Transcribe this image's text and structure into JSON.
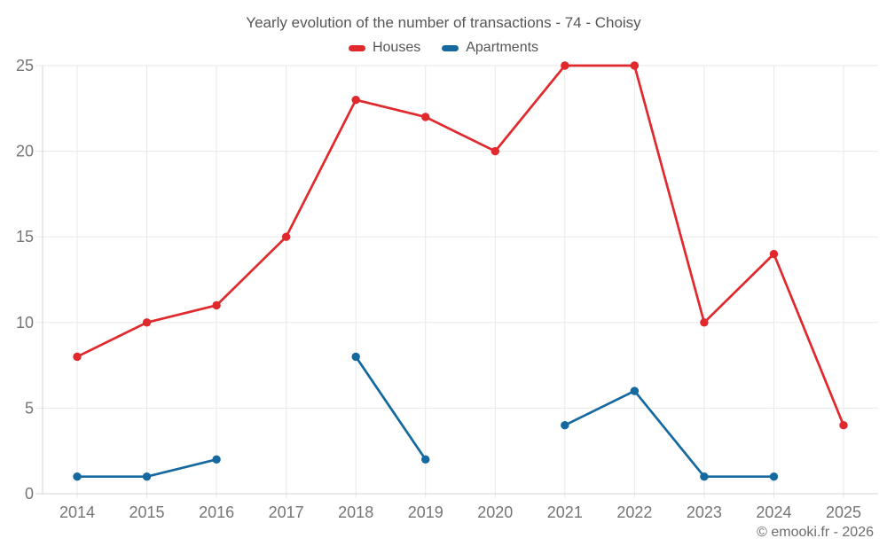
{
  "chart_data": {
    "type": "line",
    "title": "Yearly evolution of the number of transactions - 74 - Choisy",
    "x": [
      "2014",
      "2015",
      "2016",
      "2017",
      "2018",
      "2019",
      "2020",
      "2021",
      "2022",
      "2023",
      "2024",
      "2025"
    ],
    "series": [
      {
        "name": "Houses",
        "color": "#e0282d",
        "values": [
          8,
          10,
          11,
          15,
          23,
          22,
          20,
          25,
          25,
          10,
          14,
          4
        ]
      },
      {
        "name": "Apartments",
        "color": "#15699f",
        "values": [
          1,
          1,
          2,
          null,
          8,
          2,
          null,
          4,
          6,
          1,
          1,
          null
        ]
      }
    ],
    "xlabel": "",
    "ylabel": "",
    "ylim": [
      0,
      25
    ],
    "yticks": [
      0,
      5,
      10,
      15,
      20,
      25
    ],
    "grid": true,
    "legend_position": "top-center",
    "tick_text_color": "#757575",
    "grid_color": "#e8e8e8",
    "axis_color": "#d6d6d6"
  },
  "footer": {
    "copyright": "© emooki.fr - 2026"
  }
}
